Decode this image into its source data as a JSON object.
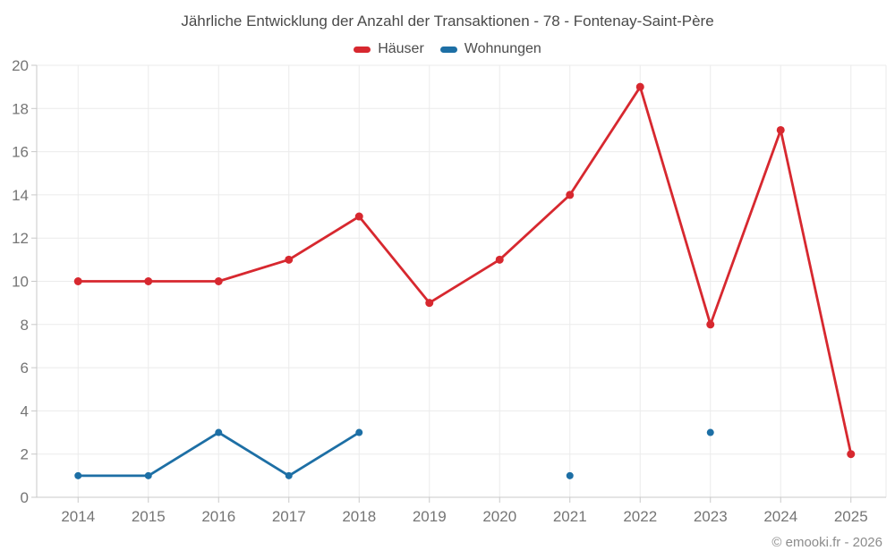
{
  "chart_data": {
    "type": "line",
    "title": "Jährliche Entwicklung der Anzahl der Transaktionen - 78 - Fontenay-Saint-Père",
    "categories": [
      "2014",
      "2015",
      "2016",
      "2017",
      "2018",
      "2019",
      "2020",
      "2021",
      "2022",
      "2023",
      "2024",
      "2025"
    ],
    "series": [
      {
        "id": "haeuser",
        "name": "Häuser",
        "color": "#d7282f",
        "values": [
          10,
          10,
          10,
          11,
          13,
          9,
          11,
          14,
          19,
          8,
          17,
          2
        ]
      },
      {
        "id": "wohnungen",
        "name": "Wohnungen",
        "color": "#1d6fa5",
        "values": [
          1,
          1,
          3,
          1,
          3,
          null,
          null,
          1,
          null,
          3,
          null,
          null
        ]
      }
    ],
    "xlabel": "",
    "ylabel": "",
    "ylim": [
      0,
      20
    ],
    "yticks": [
      0,
      2,
      4,
      6,
      8,
      10,
      12,
      14,
      16,
      18,
      20
    ],
    "grid": true,
    "legend_position": "top",
    "colors": {
      "grid": "#ebebeb",
      "axis": "#c9c9c9",
      "tick_label": "#757575",
      "title": "#4a4a4a"
    }
  },
  "footer": {
    "copyright": "© emooki.fr - 2026"
  }
}
